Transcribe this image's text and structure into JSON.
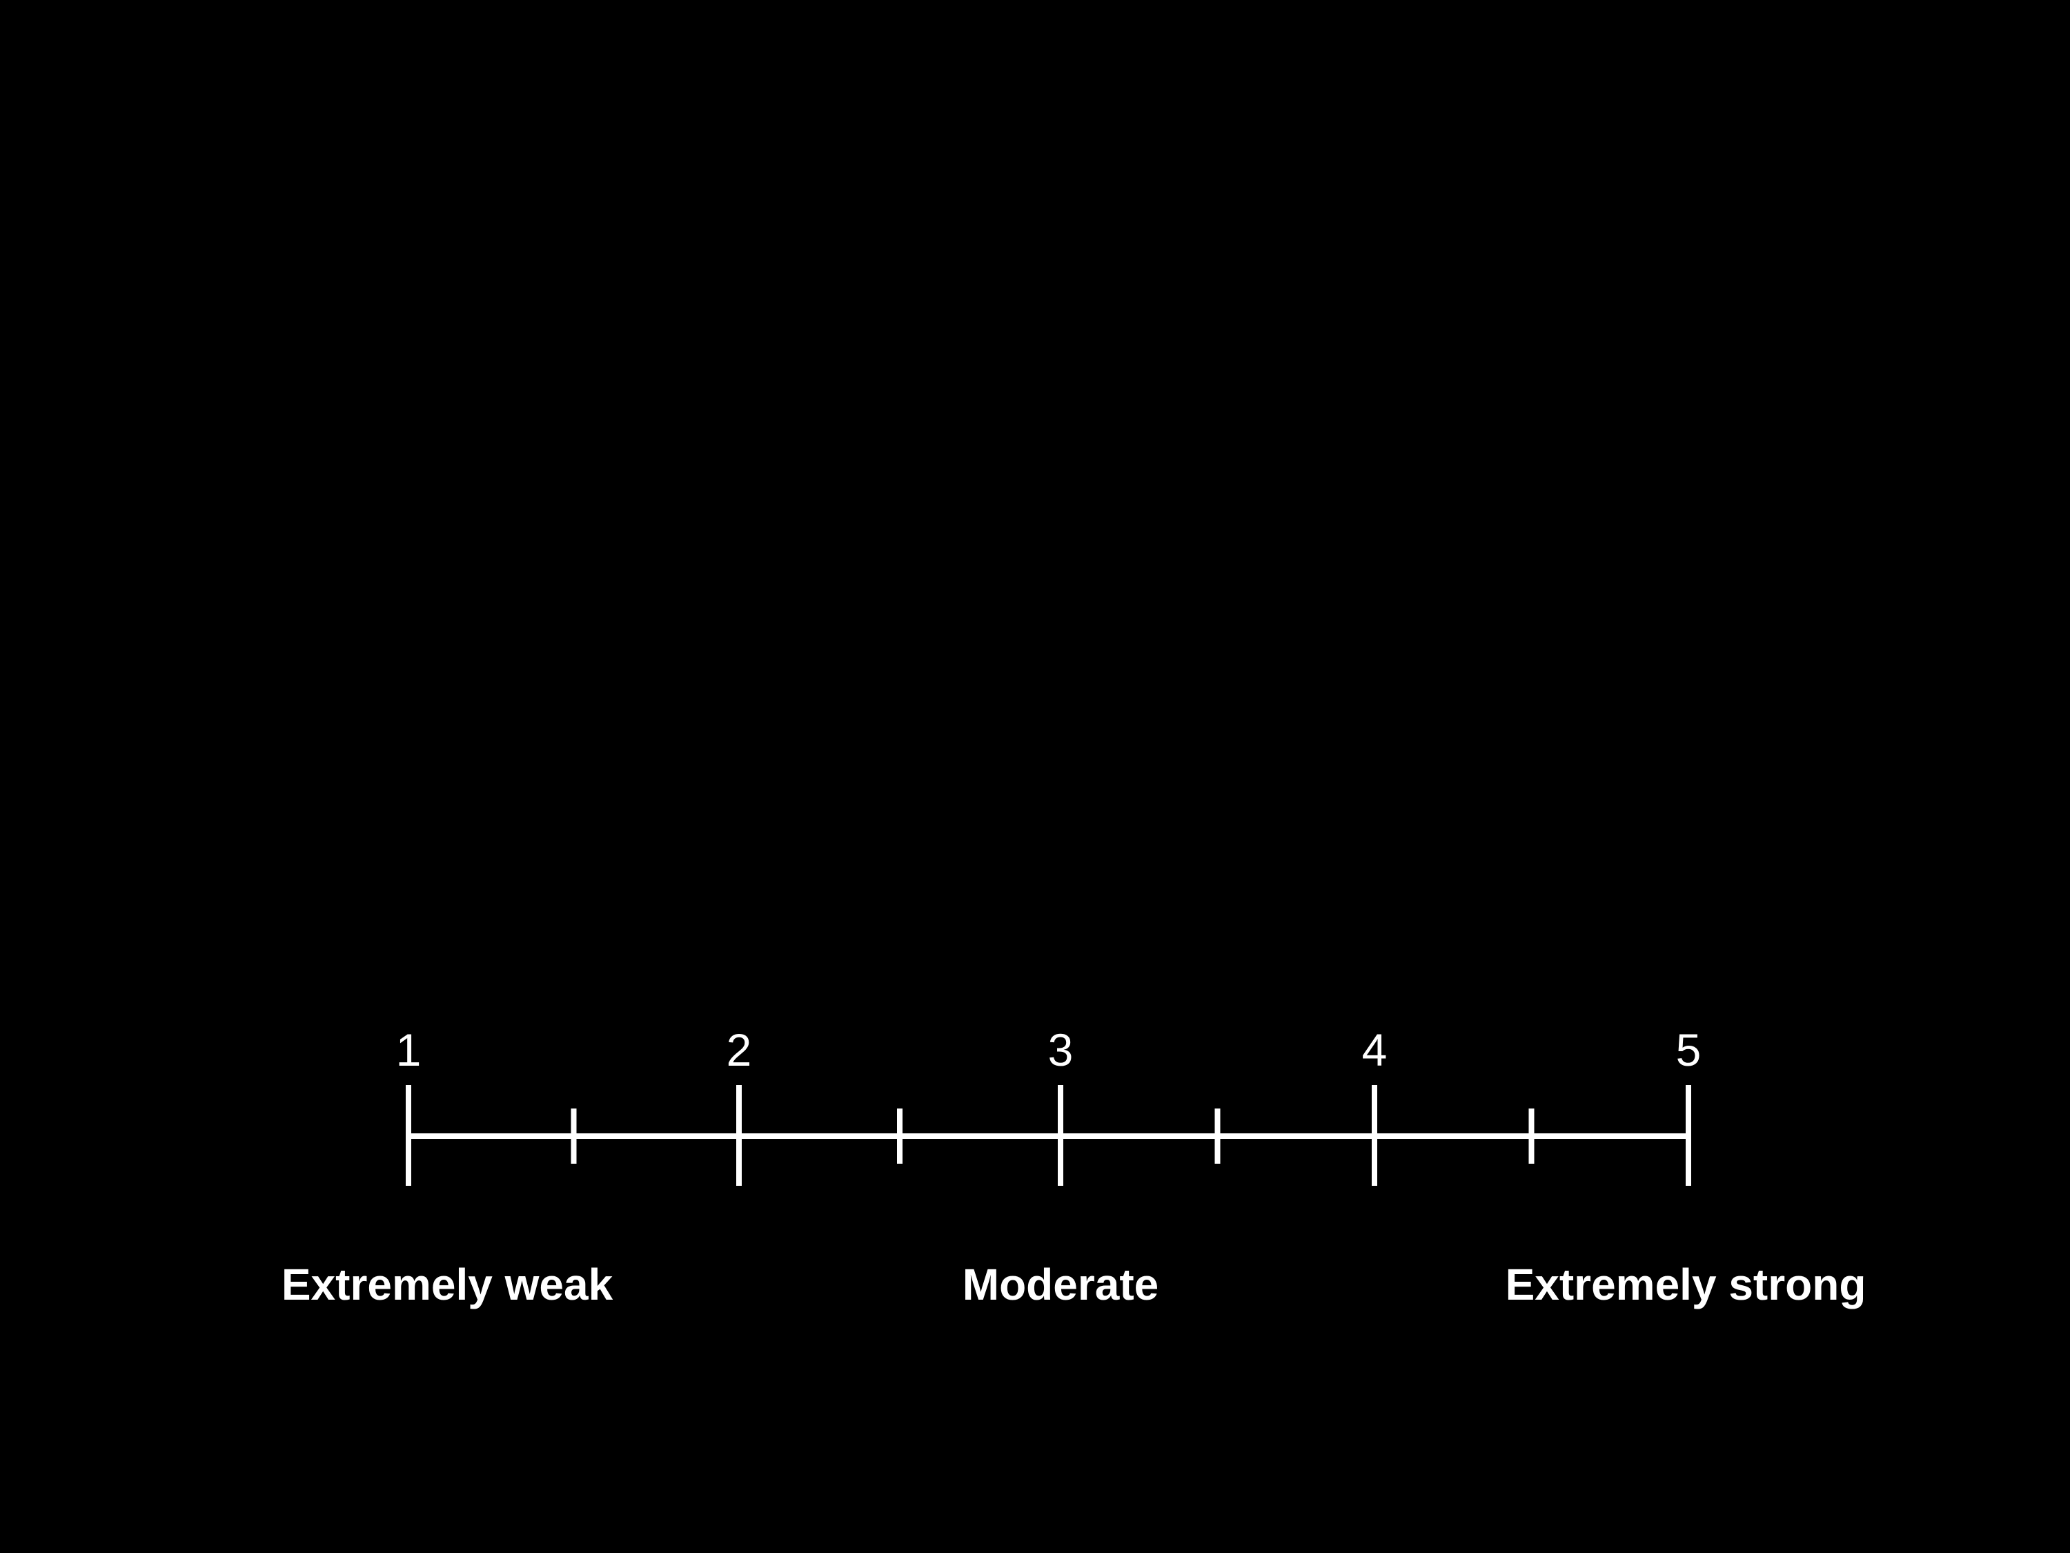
{
  "colors": {
    "background": "#000000",
    "foreground": "#ffffff"
  },
  "scale": {
    "min": 1,
    "max": 5,
    "major_ticks": [
      "1",
      "2",
      "3",
      "4",
      "5"
    ],
    "minor_tick_values": [
      1.5,
      2.5,
      3.5,
      4.5
    ],
    "anchors": [
      {
        "value": 1,
        "label": "Extremely weak"
      },
      {
        "value": 3,
        "label": "Moderate"
      },
      {
        "value": 5,
        "label": "Extremely strong"
      }
    ]
  }
}
